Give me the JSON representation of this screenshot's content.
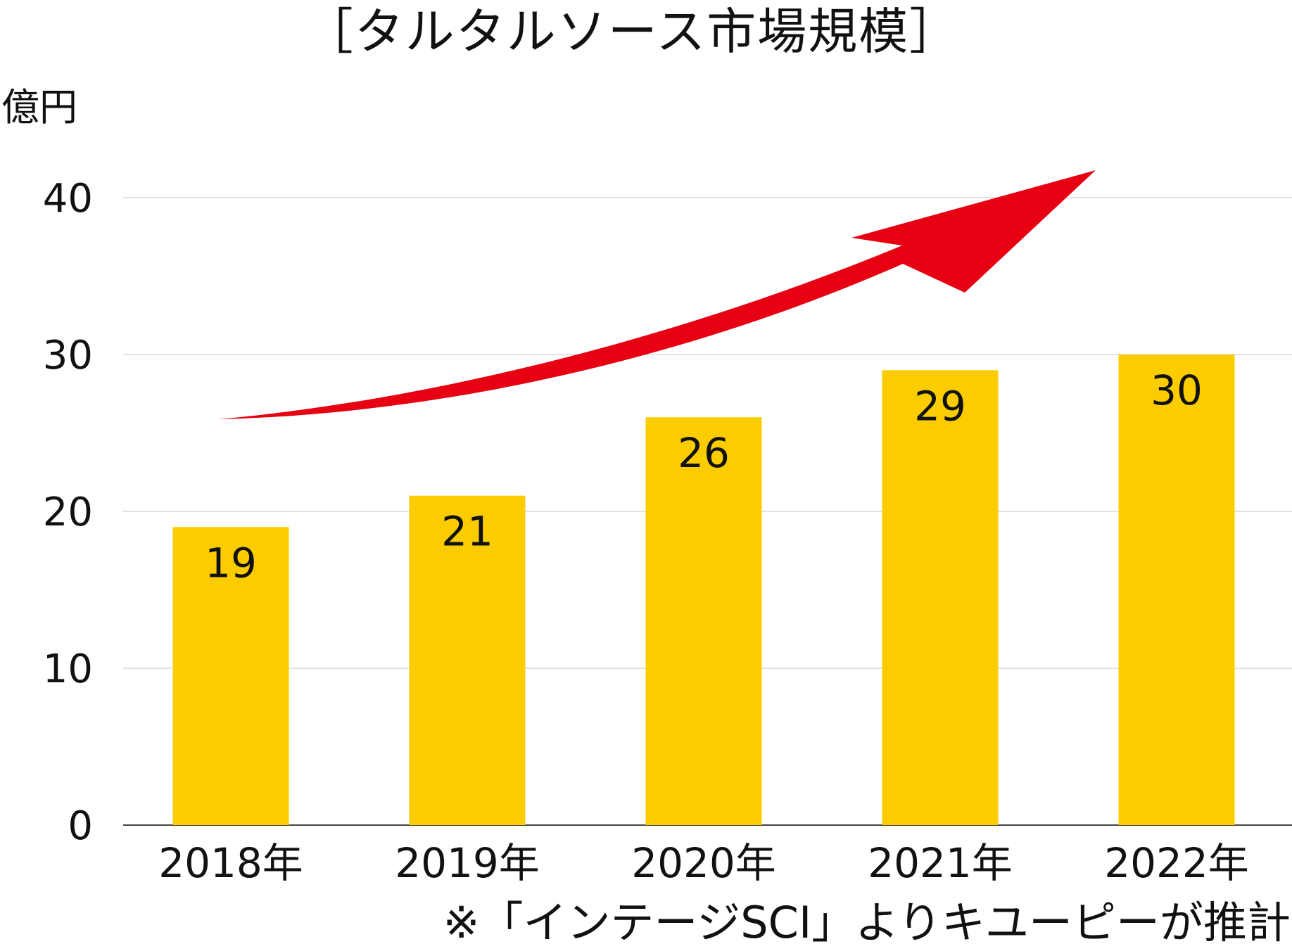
{
  "chart_data": {
    "type": "bar",
    "title": "［タルタルソース市場規模］",
    "ylabel": "億円",
    "xlabel": "",
    "categories": [
      "2018年",
      "2019年",
      "2020年",
      "2021年",
      "2022年"
    ],
    "values": [
      19,
      21,
      26,
      29,
      30
    ],
    "data_labels": [
      "19",
      "21",
      "26",
      "29",
      "30"
    ],
    "ylim": [
      0,
      40
    ],
    "yticks": [
      0,
      10,
      20,
      30,
      40
    ],
    "ytick_labels": [
      "0",
      "10",
      "20",
      "30",
      "40"
    ],
    "grid": true,
    "legend": "none",
    "annotation": "upward trend arrow",
    "note": "※「インテージSCI」よりキユーピーが推計"
  },
  "colors": {
    "bar": "#FBCD00",
    "arrow": "#E60012",
    "grid": "#d9d9d9",
    "axis": "#444444",
    "text": "#111111"
  }
}
